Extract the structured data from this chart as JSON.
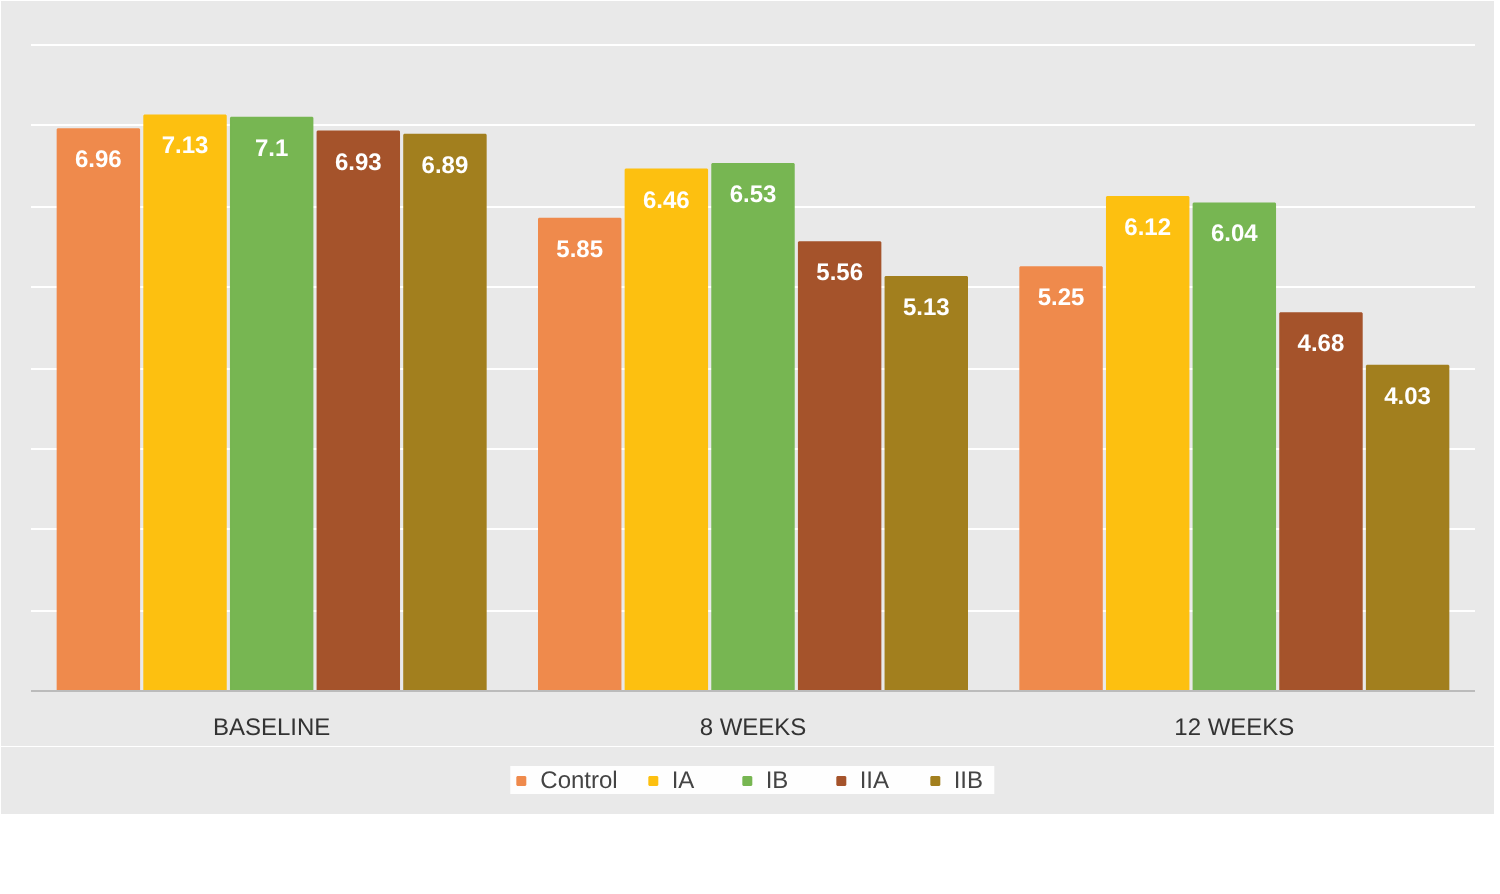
{
  "chart_data": {
    "type": "bar",
    "categories": [
      "BASELINE",
      "8 WEEKS",
      "12 WEEKS"
    ],
    "series": [
      {
        "name": "Control",
        "color": "#ef8a4c",
        "values": [
          6.96,
          5.85,
          5.25
        ]
      },
      {
        "name": "IA",
        "color": "#fdc010",
        "values": [
          7.13,
          6.46,
          6.12
        ]
      },
      {
        "name": "IB",
        "color": "#77b652",
        "values": [
          7.1,
          6.53,
          6.04
        ]
      },
      {
        "name": "IIA",
        "color": "#a5532b",
        "values": [
          6.93,
          5.56,
          4.68
        ]
      },
      {
        "name": "IIB",
        "color": "#a27f1e",
        "values": [
          6.89,
          5.13,
          4.03
        ]
      }
    ],
    "ylim": [
      0,
      8.3
    ],
    "yticks": [
      {
        "value": 0,
        "label": null
      },
      {
        "value": 1,
        "label": null
      },
      {
        "value": 2,
        "label": null
      },
      {
        "value": 3,
        "label": null
      },
      {
        "value": 4,
        "label": null
      },
      {
        "value": 5,
        "label": null
      },
      {
        "value": 6,
        "label": null
      },
      {
        "value": 7,
        "label": null
      },
      {
        "value": 8,
        "label": null
      }
    ],
    "tick_labels": "x",
    "grid": "y",
    "data_labels": true,
    "legend": "bottom"
  }
}
